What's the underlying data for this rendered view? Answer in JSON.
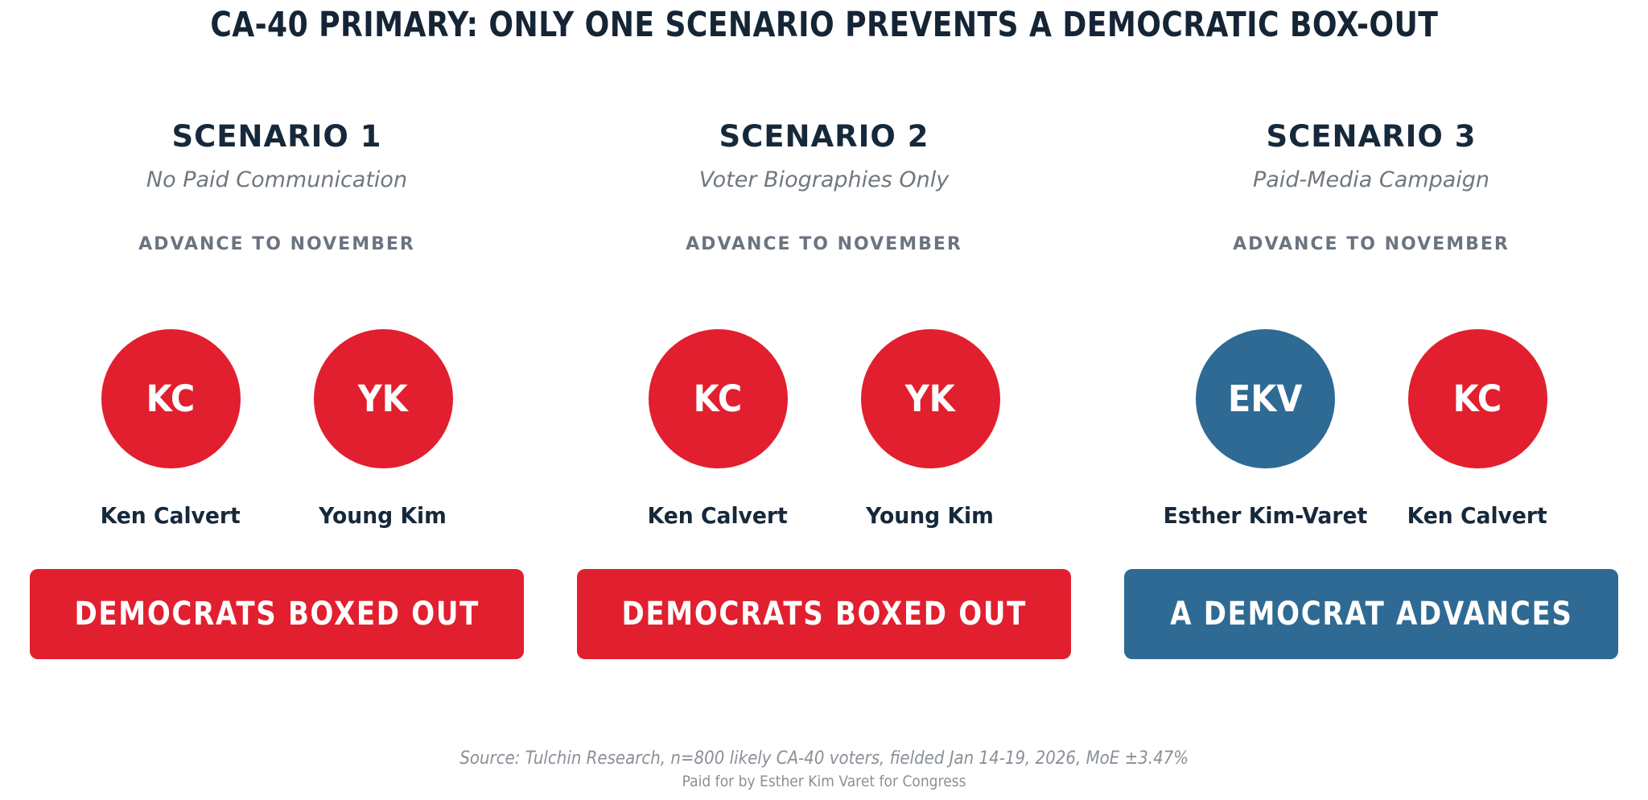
{
  "title": "CA-40 PRIMARY: ONLY ONE SCENARIO PREVENTS A DEMOCRATIC BOX-OUT",
  "advance_label": "ADVANCE TO NOVEMBER",
  "colors": {
    "republican_red": "#e11f2e",
    "democrat_blue": "#2e6a93",
    "navy_text": "#16293b",
    "muted_gray": "#6b7480",
    "footer_gray": "#8a9097"
  },
  "scenarios": [
    {
      "heading": "SCENARIO 1",
      "subtitle": "No Paid Communication",
      "candidates": [
        {
          "initials": "KC",
          "name": "Ken Calvert",
          "color": "#e11f2e"
        },
        {
          "initials": "YK",
          "name": "Young Kim",
          "color": "#e11f2e"
        }
      ],
      "outcome": {
        "label": "DEMOCRATS BOXED OUT",
        "color": "#e11f2e"
      }
    },
    {
      "heading": "SCENARIO 2",
      "subtitle": "Voter Biographies Only",
      "candidates": [
        {
          "initials": "KC",
          "name": "Ken Calvert",
          "color": "#e11f2e"
        },
        {
          "initials": "YK",
          "name": "Young Kim",
          "color": "#e11f2e"
        }
      ],
      "outcome": {
        "label": "DEMOCRATS BOXED OUT",
        "color": "#e11f2e"
      }
    },
    {
      "heading": "SCENARIO 3",
      "subtitle": "Paid-Media Campaign",
      "candidates": [
        {
          "initials": "EKV",
          "name": "Esther Kim-Varet",
          "color": "#2e6a93"
        },
        {
          "initials": "KC",
          "name": "Ken Calvert",
          "color": "#e11f2e"
        }
      ],
      "outcome": {
        "label": "A DEMOCRAT ADVANCES",
        "color": "#2e6a93"
      }
    }
  ],
  "footer": {
    "source": "Source: Tulchin Research, n=800 likely CA-40 voters, fielded Jan 14-19, 2026, MoE ±3.47%",
    "disclaimer": "Paid for by Esther Kim Varet for Congress"
  }
}
